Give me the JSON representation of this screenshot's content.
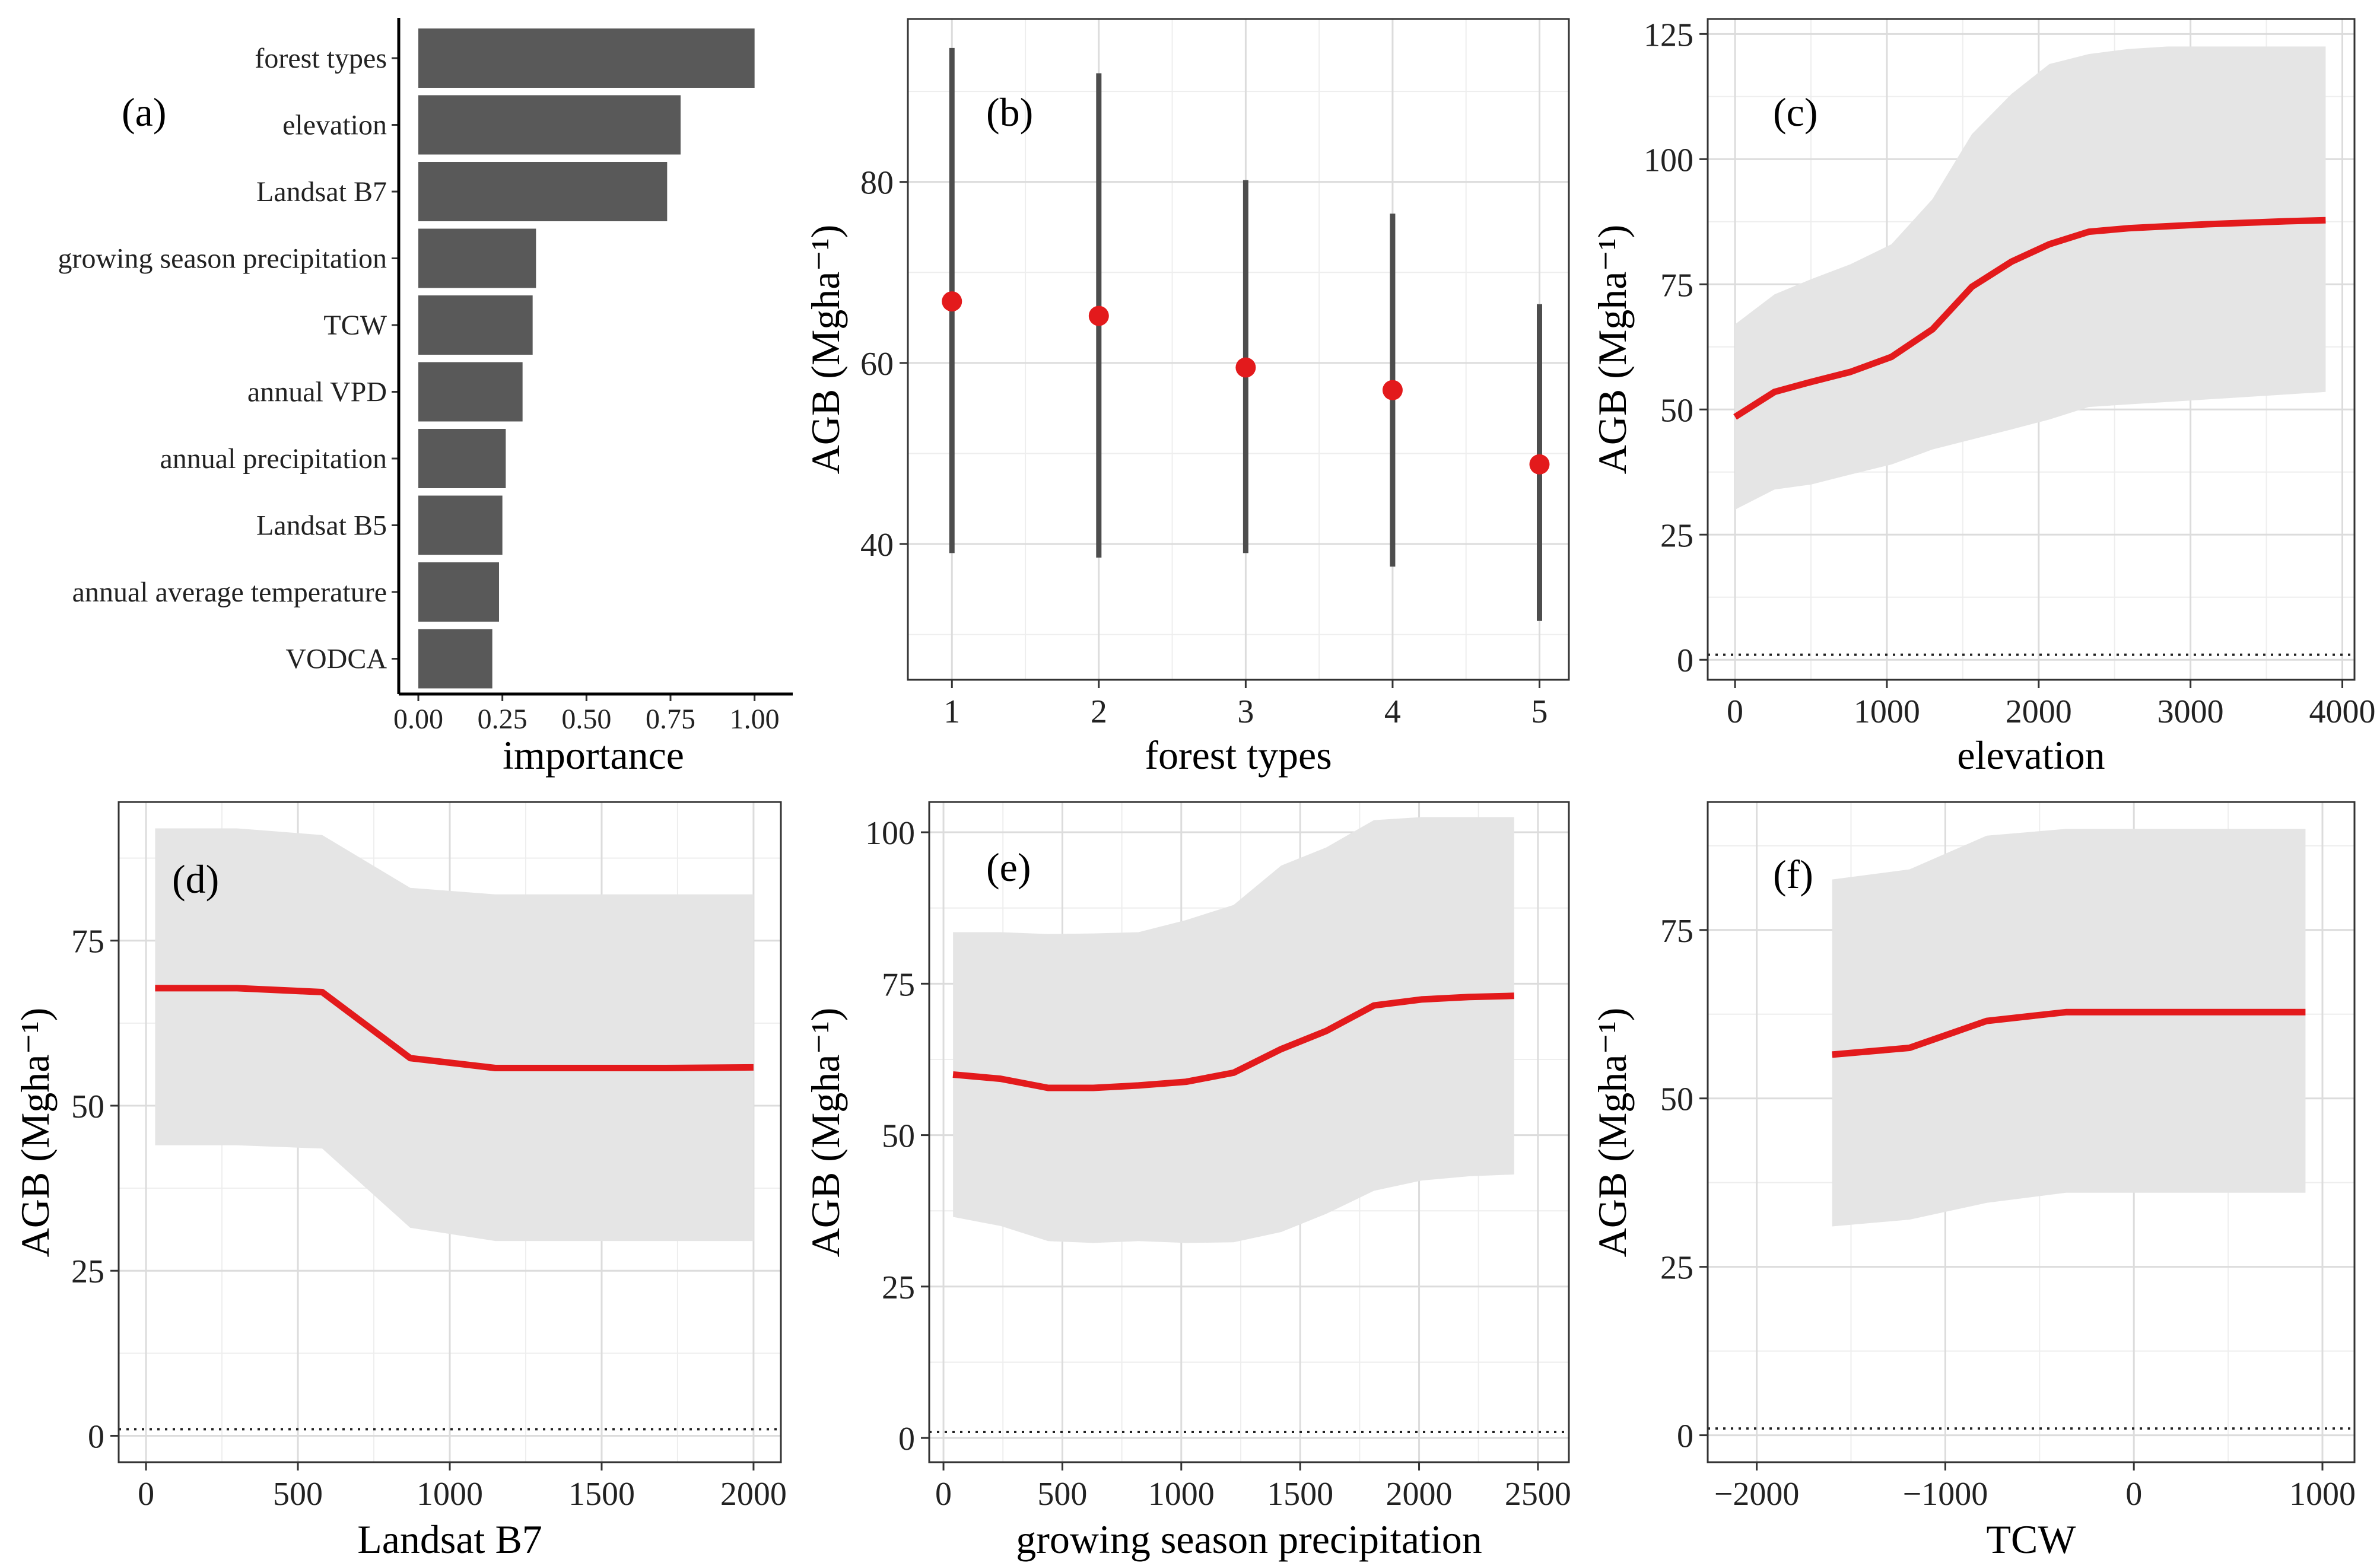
{
  "chart_data": [
    {
      "panel": "(a)",
      "type": "bar",
      "orientation": "horizontal",
      "categories": [
        "forest types",
        "elevation",
        "Landsat B7",
        "growing season  precipitation",
        "TCW",
        "annual VPD",
        "annual precipitation",
        "Landsat B5",
        "annual average temperature",
        "VODCA"
      ],
      "values": [
        1.0,
        0.78,
        0.74,
        0.35,
        0.34,
        0.31,
        0.26,
        0.25,
        0.24,
        0.22
      ],
      "xlabel": "importance",
      "ylabel": "",
      "xlim": [
        0,
        1.05
      ],
      "xticks": [
        "0.00",
        "0.25",
        "0.50",
        "0.75",
        "1.00"
      ],
      "colors": {
        "bar": "#595959"
      }
    },
    {
      "panel": "(b)",
      "type": "scatter",
      "x": [
        1,
        2,
        3,
        4,
        5
      ],
      "y": [
        66.8,
        65.2,
        59.5,
        57.0,
        48.8
      ],
      "y_low": [
        39.0,
        38.5,
        39.0,
        37.5,
        31.5
      ],
      "y_high": [
        94.8,
        92.0,
        80.2,
        76.5,
        66.5
      ],
      "xlabel": "forest types",
      "ylabel": "AGB (Mgha⁻¹)",
      "xlim": [
        0.7,
        5.2
      ],
      "ylim": [
        25,
        98
      ],
      "xticks": [
        "1",
        "2",
        "3",
        "4",
        "5"
      ],
      "yticks": [
        "40",
        "60",
        "80"
      ],
      "colors": {
        "point": "#e31a1c",
        "errorbar": "#4d4d4d"
      }
    },
    {
      "panel": "(c)",
      "type": "line",
      "x": [
        0,
        260,
        500,
        760,
        1030,
        1300,
        1560,
        1820,
        2070,
        2330,
        2590,
        2850,
        3110,
        3370,
        3630,
        3890
      ],
      "y": [
        48.5,
        53.5,
        55.5,
        57.5,
        60.5,
        66.0,
        74.5,
        79.5,
        83.0,
        85.5,
        86.2,
        86.6,
        87.0,
        87.3,
        87.6,
        87.8
      ],
      "band_low": [
        30,
        34,
        35,
        37,
        39,
        42,
        44,
        46,
        48,
        50.5,
        51,
        51.5,
        52,
        52.5,
        53,
        53.5
      ],
      "band_high": [
        67,
        73,
        76,
        79,
        83,
        92,
        105,
        113,
        119,
        121,
        122,
        122.5,
        122.5,
        122.5,
        122.5,
        122.5
      ],
      "reference_line": 1,
      "xlabel": "elevation",
      "ylabel": "AGB (Mgha⁻¹)",
      "xlim": [
        -180,
        4080
      ],
      "ylim": [
        -4,
        128
      ],
      "xticks": [
        "0",
        "1000",
        "2000",
        "3000",
        "4000"
      ],
      "yticks": [
        "0",
        "25",
        "50",
        "75",
        "100",
        "125"
      ],
      "colors": {
        "line": "#e31a1c",
        "band": "#e5e5e5"
      }
    },
    {
      "panel": "(d)",
      "type": "line",
      "x": [
        30,
        300,
        580,
        870,
        1150,
        1430,
        1710,
        2000
      ],
      "y": [
        67.8,
        67.8,
        67.2,
        57.2,
        55.7,
        55.7,
        55.7,
        55.8
      ],
      "band_low": [
        44,
        44,
        43.5,
        31.5,
        29.5,
        29.5,
        29.5,
        29.5
      ],
      "band_high": [
        92,
        92,
        91,
        83,
        82,
        82,
        82,
        82
      ],
      "reference_line": 1,
      "xlabel": "Landsat B7",
      "ylabel": "AGB (Mgha⁻¹)",
      "xlim": [
        -90,
        2090
      ],
      "ylim": [
        -4,
        96
      ],
      "xticks": [
        "0",
        "500",
        "1000",
        "1500",
        "2000"
      ],
      "yticks": [
        "0",
        "25",
        "50",
        "75"
      ],
      "colors": {
        "line": "#e31a1c",
        "band": "#e5e5e5"
      }
    },
    {
      "panel": "(e)",
      "type": "line",
      "x": [
        40,
        240,
        440,
        630,
        820,
        1020,
        1220,
        1420,
        1610,
        1810,
        2010,
        2210,
        2400
      ],
      "y": [
        60.0,
        59.3,
        57.8,
        57.8,
        58.2,
        58.8,
        60.3,
        64.2,
        67.2,
        71.4,
        72.4,
        72.8,
        73.0
      ],
      "band_low": [
        36.5,
        35,
        32.5,
        32.2,
        32.5,
        32.2,
        32.3,
        34.0,
        37.0,
        40.8,
        42.5,
        43.2,
        43.5
      ],
      "band_high": [
        83.5,
        83.5,
        83.2,
        83.3,
        83.5,
        85.5,
        88.0,
        94.5,
        97.5,
        102,
        102.5,
        102.5,
        102.5
      ],
      "reference_line": 1,
      "xlabel": "growing season precipitation",
      "ylabel": "AGB (Mgha⁻¹)",
      "xlim": [
        -60,
        2630
      ],
      "ylim": [
        -4,
        105
      ],
      "xticks": [
        "0",
        "500",
        "1000",
        "1500",
        "2000",
        "2500"
      ],
      "yticks": [
        "0",
        "25",
        "50",
        "75",
        "100"
      ],
      "colors": {
        "line": "#e31a1c",
        "band": "#e5e5e5"
      }
    },
    {
      "panel": "(f)",
      "type": "line",
      "x": [
        -1600,
        -1190,
        -780,
        -360,
        50,
        460,
        910
      ],
      "y": [
        56.5,
        57.5,
        61.5,
        62.8,
        62.8,
        62.8,
        62.8
      ],
      "band_low": [
        31,
        32,
        34.5,
        36,
        36,
        36,
        36
      ],
      "band_high": [
        82.5,
        84,
        89,
        90,
        90,
        90,
        90
      ],
      "reference_line": 1,
      "xlabel": "TCW",
      "ylabel": "AGB (Mgha⁻¹)",
      "xlim": [
        -2260,
        1170
      ],
      "ylim": [
        -4,
        94
      ],
      "xticks": [
        "−2000",
        "−1000",
        "0",
        "1000"
      ],
      "yticks": [
        "0",
        "25",
        "50",
        "75"
      ],
      "colors": {
        "line": "#e31a1c",
        "band": "#e5e5e5"
      }
    }
  ]
}
